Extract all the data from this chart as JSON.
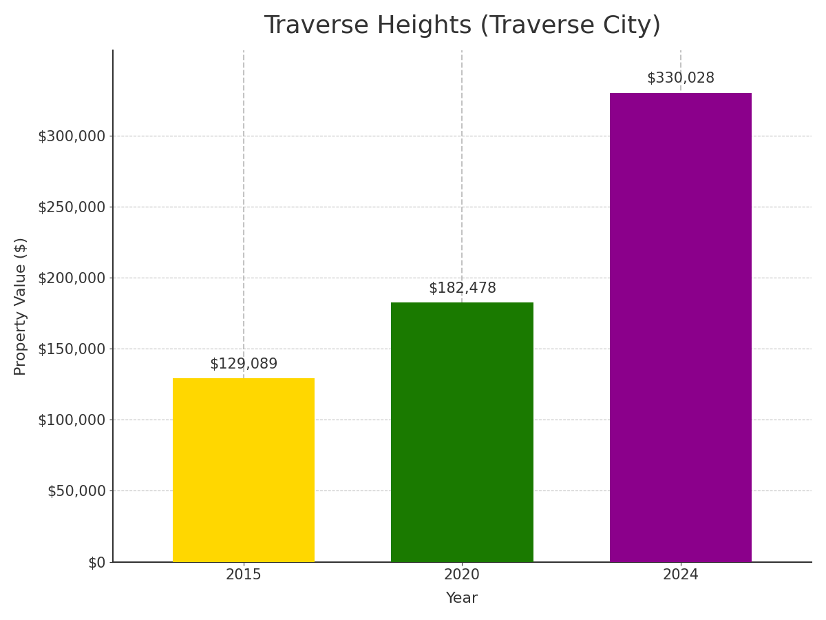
{
  "title": "Traverse Heights (Traverse City)",
  "xlabel": "Year",
  "ylabel": "Property Value ($)",
  "categories": [
    "2015",
    "2020",
    "2024"
  ],
  "values": [
    129089,
    182478,
    330028
  ],
  "bar_colors": [
    "#FFD700",
    "#1a7a00",
    "#8B008B"
  ],
  "annotations": [
    "$129,089",
    "$182,478",
    "$330,028"
  ],
  "ylim": [
    0,
    360000
  ],
  "yticks": [
    0,
    50000,
    100000,
    150000,
    200000,
    250000,
    300000
  ],
  "title_fontsize": 26,
  "label_fontsize": 16,
  "tick_fontsize": 15,
  "annotation_fontsize": 15,
  "background_color": "#ffffff",
  "bar_width": 0.65,
  "edge_color": "none"
}
